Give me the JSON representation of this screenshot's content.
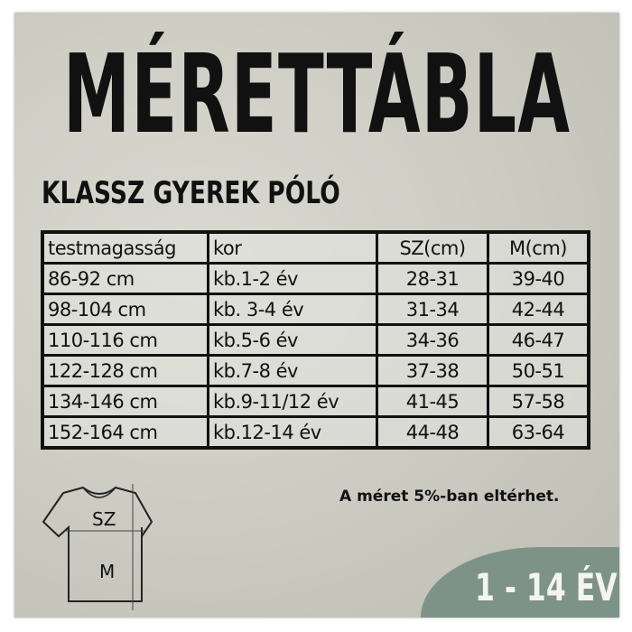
{
  "title": "MÉRETTÁBLA",
  "subtitle": "KLASSZ GYEREK PÓLÓ",
  "table": {
    "headers": [
      "testmagasság",
      "kor",
      "SZ(cm)",
      "M(cm)"
    ],
    "rows": [
      [
        "86-92 cm",
        "kb.1-2 év",
        "28-31",
        "39-40"
      ],
      [
        "98-104 cm",
        "kb. 3-4 év",
        "31-34",
        "42-44"
      ],
      [
        "110-116 cm",
        "kb.5-6 év",
        "34-36",
        "46-47"
      ],
      [
        "122-128 cm",
        "kb.7-8 év",
        "37-38",
        "50-51"
      ],
      [
        "134-146 cm",
        "kb.9-11/12 év",
        "41-45",
        "57-58"
      ],
      [
        "152-164 cm",
        "kb.12-14 év",
        "44-48",
        "63-64"
      ]
    ]
  },
  "note": "A méret 5%-ban eltérhet.",
  "diagram": {
    "width_label": "SZ",
    "length_label": "M"
  },
  "age_badge": "1 - 14 ÉV",
  "colors": {
    "badge": "#7d9388",
    "text": "#111111"
  }
}
